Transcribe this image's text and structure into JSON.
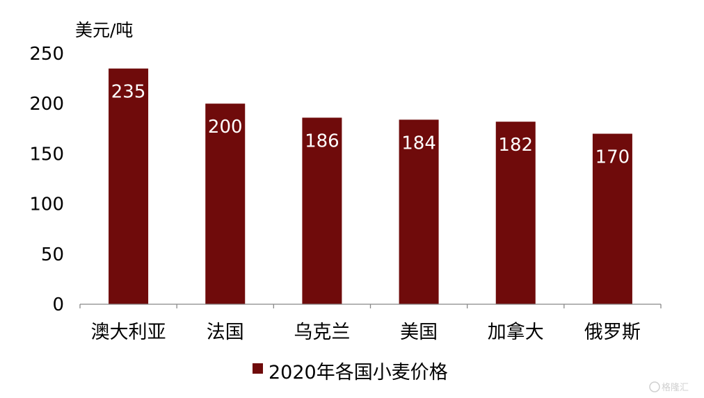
{
  "chart_data": {
    "type": "bar",
    "categories": [
      "澳大利亚",
      "法国",
      "乌克兰",
      "美国",
      "加拿大",
      "俄罗斯"
    ],
    "series": [
      {
        "name": "2020年各国小麦价格",
        "values": [
          235,
          200,
          186,
          184,
          182,
          170
        ],
        "color": "#6f0b0b"
      }
    ],
    "ylabel": "美元/吨",
    "ylim": [
      0,
      250
    ],
    "yticks": [
      0,
      50,
      100,
      150,
      200,
      250
    ],
    "grid": false,
    "legend_position": "bottom"
  },
  "watermark": {
    "text": "格隆汇",
    "icon": "gelonghui-logo-icon"
  }
}
